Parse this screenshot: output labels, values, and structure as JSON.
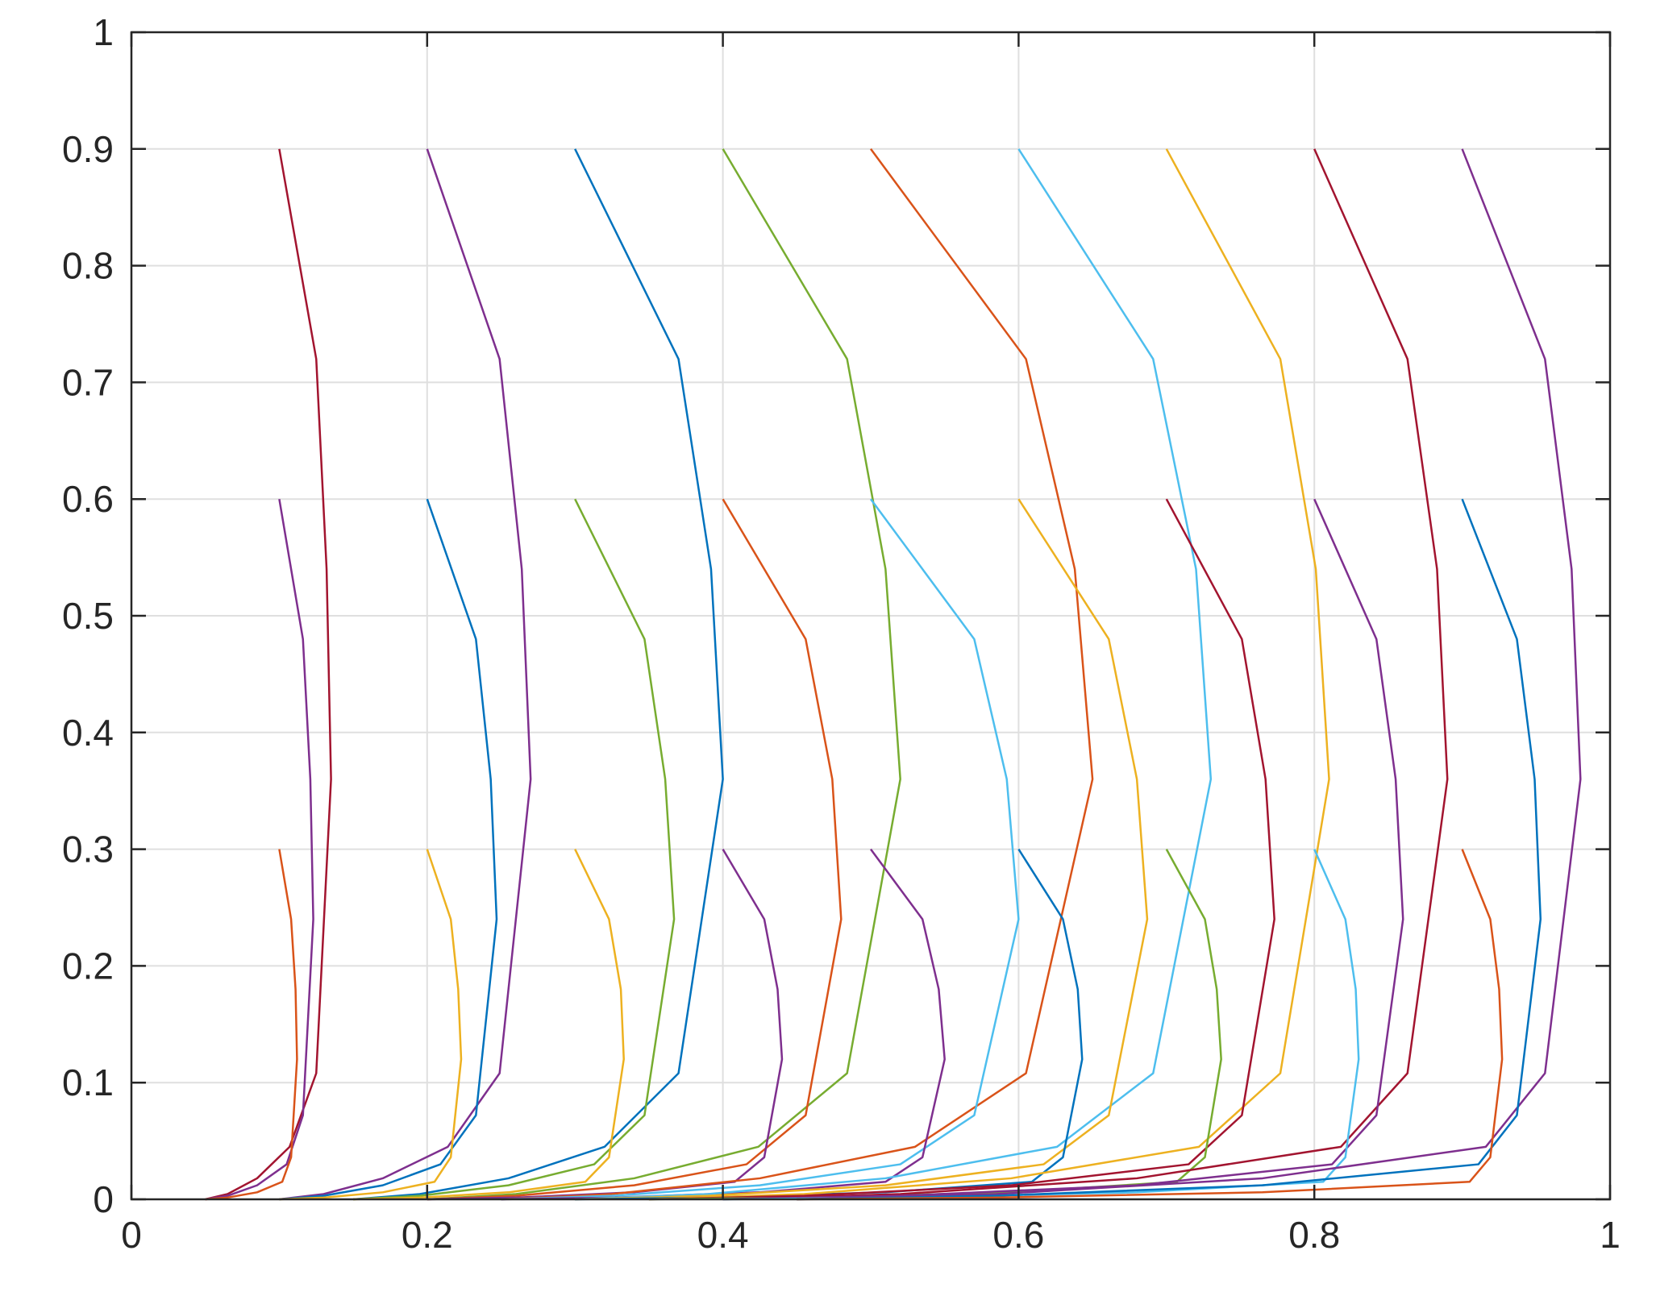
{
  "chart_data": {
    "type": "line",
    "xlim": [
      0,
      1
    ],
    "ylim": [
      0,
      1
    ],
    "xticks": [
      0,
      0.2,
      0.4,
      0.6,
      0.8,
      1
    ],
    "yticks": [
      0,
      0.1,
      0.2,
      0.3,
      0.4,
      0.5,
      0.6,
      0.7,
      0.8,
      0.9,
      1
    ],
    "grid": true,
    "series": [
      {
        "color": "#A2142F",
        "x": [
          0.1,
          0.125,
          0.132,
          0.135,
          0.125,
          0.107,
          0.085,
          0.065,
          0.05
        ],
        "values": [
          0.9,
          0.72,
          0.54,
          0.36,
          0.108,
          0.045,
          0.018,
          0.0045,
          0
        ]
      },
      {
        "color": "#7E2F8E",
        "x": [
          0.1,
          0.116,
          0.121,
          0.123,
          0.116,
          0.105,
          0.085,
          0.065,
          0.05
        ],
        "values": [
          0.6,
          0.48,
          0.36,
          0.24,
          0.072,
          0.03,
          0.012,
          0.003,
          0
        ]
      },
      {
        "color": "#D95319",
        "x": [
          0.1,
          0.108,
          0.111,
          0.112,
          0.108,
          0.102,
          0.085,
          0.065,
          0.05
        ],
        "values": [
          0.3,
          0.24,
          0.18,
          0.12,
          0.036,
          0.015,
          0.006,
          0.0015,
          0
        ]
      },
      {
        "color": "#7E2F8E",
        "x": [
          0.2,
          0.249,
          0.264,
          0.27,
          0.249,
          0.214,
          0.17,
          0.13,
          0.1
        ],
        "values": [
          0.9,
          0.72,
          0.54,
          0.36,
          0.108,
          0.045,
          0.018,
          0.0045,
          0
        ]
      },
      {
        "color": "#0072BD",
        "x": [
          0.2,
          0.233,
          0.243,
          0.247,
          0.233,
          0.209,
          0.17,
          0.13,
          0.1
        ],
        "values": [
          0.6,
          0.48,
          0.36,
          0.24,
          0.072,
          0.03,
          0.012,
          0.003,
          0
        ]
      },
      {
        "color": "#EDB120",
        "x": [
          0.2,
          0.216,
          0.221,
          0.223,
          0.216,
          0.205,
          0.17,
          0.13,
          0.1
        ],
        "values": [
          0.3,
          0.24,
          0.18,
          0.12,
          0.036,
          0.015,
          0.006,
          0.0015,
          0
        ]
      },
      {
        "color": "#0072BD",
        "x": [
          0.3,
          0.37,
          0.392,
          0.4,
          0.37,
          0.32,
          0.255,
          0.195,
          0.15
        ],
        "values": [
          0.9,
          0.72,
          0.54,
          0.36,
          0.108,
          0.045,
          0.018,
          0.0045,
          0
        ]
      },
      {
        "color": "#77AC30",
        "x": [
          0.3,
          0.347,
          0.361,
          0.367,
          0.347,
          0.313,
          0.255,
          0.195,
          0.15
        ],
        "values": [
          0.6,
          0.48,
          0.36,
          0.24,
          0.072,
          0.03,
          0.012,
          0.003,
          0
        ]
      },
      {
        "color": "#EDB120",
        "x": [
          0.3,
          0.323,
          0.331,
          0.333,
          0.323,
          0.307,
          0.255,
          0.195,
          0.15
        ],
        "values": [
          0.3,
          0.24,
          0.18,
          0.12,
          0.036,
          0.015,
          0.006,
          0.0015,
          0
        ]
      },
      {
        "color": "#77AC30",
        "x": [
          0.4,
          0.484,
          0.51,
          0.52,
          0.484,
          0.424,
          0.34,
          0.26,
          0.2
        ],
        "values": [
          0.9,
          0.72,
          0.54,
          0.36,
          0.108,
          0.045,
          0.018,
          0.0045,
          0
        ]
      },
      {
        "color": "#D95319",
        "x": [
          0.4,
          0.456,
          0.474,
          0.48,
          0.456,
          0.416,
          0.34,
          0.26,
          0.2
        ],
        "values": [
          0.6,
          0.48,
          0.36,
          0.24,
          0.072,
          0.03,
          0.012,
          0.003,
          0
        ]
      },
      {
        "color": "#7E2F8E",
        "x": [
          0.4,
          0.428,
          0.437,
          0.44,
          0.428,
          0.408,
          0.34,
          0.26,
          0.2
        ],
        "values": [
          0.3,
          0.24,
          0.18,
          0.12,
          0.036,
          0.015,
          0.006,
          0.0015,
          0
        ]
      },
      {
        "color": "#D95319",
        "x": [
          0.5,
          0.605,
          0.638,
          0.65,
          0.605,
          0.53,
          0.425,
          0.325,
          0.25
        ],
        "values": [
          0.9,
          0.72,
          0.54,
          0.36,
          0.108,
          0.045,
          0.018,
          0.0045,
          0
        ]
      },
      {
        "color": "#4DBEEE",
        "x": [
          0.5,
          0.57,
          0.592,
          0.6,
          0.57,
          0.52,
          0.425,
          0.325,
          0.25
        ],
        "values": [
          0.6,
          0.48,
          0.36,
          0.24,
          0.072,
          0.03,
          0.012,
          0.003,
          0
        ]
      },
      {
        "color": "#7E2F8E",
        "x": [
          0.5,
          0.535,
          0.546,
          0.55,
          0.535,
          0.51,
          0.425,
          0.325,
          0.25
        ],
        "values": [
          0.3,
          0.24,
          0.18,
          0.12,
          0.036,
          0.015,
          0.006,
          0.0015,
          0
        ]
      },
      {
        "color": "#4DBEEE",
        "x": [
          0.6,
          0.691,
          0.72,
          0.73,
          0.691,
          0.626,
          0.51,
          0.39,
          0.3
        ],
        "values": [
          0.9,
          0.72,
          0.54,
          0.36,
          0.108,
          0.045,
          0.018,
          0.0045,
          0
        ]
      },
      {
        "color": "#EDB120",
        "x": [
          0.6,
          0.661,
          0.68,
          0.687,
          0.661,
          0.617,
          0.51,
          0.39,
          0.3
        ],
        "values": [
          0.6,
          0.48,
          0.36,
          0.24,
          0.072,
          0.03,
          0.012,
          0.003,
          0
        ]
      },
      {
        "color": "#0072BD",
        "x": [
          0.6,
          0.63,
          0.64,
          0.643,
          0.63,
          0.609,
          0.51,
          0.39,
          0.3
        ],
        "values": [
          0.3,
          0.24,
          0.18,
          0.12,
          0.036,
          0.015,
          0.006,
          0.0015,
          0
        ]
      },
      {
        "color": "#EDB120",
        "x": [
          0.7,
          0.777,
          0.801,
          0.81,
          0.777,
          0.722,
          0.595,
          0.455,
          0.35
        ],
        "values": [
          0.9,
          0.72,
          0.54,
          0.36,
          0.108,
          0.045,
          0.018,
          0.0045,
          0
        ]
      },
      {
        "color": "#A2142F",
        "x": [
          0.7,
          0.751,
          0.767,
          0.773,
          0.751,
          0.715,
          0.595,
          0.455,
          0.35
        ],
        "values": [
          0.6,
          0.48,
          0.36,
          0.24,
          0.072,
          0.03,
          0.012,
          0.003,
          0
        ]
      },
      {
        "color": "#77AC30",
        "x": [
          0.7,
          0.726,
          0.734,
          0.737,
          0.726,
          0.707,
          0.595,
          0.455,
          0.35
        ],
        "values": [
          0.3,
          0.24,
          0.18,
          0.12,
          0.036,
          0.015,
          0.006,
          0.0015,
          0
        ]
      },
      {
        "color": "#A2142F",
        "x": [
          0.8,
          0.863,
          0.883,
          0.89,
          0.863,
          0.818,
          0.68,
          0.52,
          0.4
        ],
        "values": [
          0.9,
          0.72,
          0.54,
          0.36,
          0.108,
          0.045,
          0.018,
          0.0045,
          0
        ]
      },
      {
        "color": "#7E2F8E",
        "x": [
          0.8,
          0.842,
          0.855,
          0.86,
          0.842,
          0.812,
          0.68,
          0.52,
          0.4
        ],
        "values": [
          0.6,
          0.48,
          0.36,
          0.24,
          0.072,
          0.03,
          0.012,
          0.003,
          0
        ]
      },
      {
        "color": "#4DBEEE",
        "x": [
          0.8,
          0.821,
          0.828,
          0.83,
          0.821,
          0.806,
          0.68,
          0.52,
          0.4
        ],
        "values": [
          0.3,
          0.24,
          0.18,
          0.12,
          0.036,
          0.015,
          0.006,
          0.0015,
          0
        ]
      },
      {
        "color": "#7E2F8E",
        "x": [
          0.9,
          0.956,
          0.974,
          0.98,
          0.956,
          0.916,
          0.765,
          0.585,
          0.45
        ],
        "values": [
          0.9,
          0.72,
          0.54,
          0.36,
          0.108,
          0.045,
          0.018,
          0.0045,
          0
        ]
      },
      {
        "color": "#0072BD",
        "x": [
          0.9,
          0.937,
          0.949,
          0.953,
          0.937,
          0.911,
          0.765,
          0.585,
          0.45
        ],
        "values": [
          0.6,
          0.48,
          0.36,
          0.24,
          0.072,
          0.03,
          0.012,
          0.003,
          0
        ]
      },
      {
        "color": "#D95319",
        "x": [
          0.9,
          0.919,
          0.925,
          0.927,
          0.919,
          0.905,
          0.765,
          0.585,
          0.45
        ],
        "values": [
          0.3,
          0.24,
          0.18,
          0.12,
          0.036,
          0.015,
          0.006,
          0.0015,
          0
        ]
      }
    ]
  }
}
